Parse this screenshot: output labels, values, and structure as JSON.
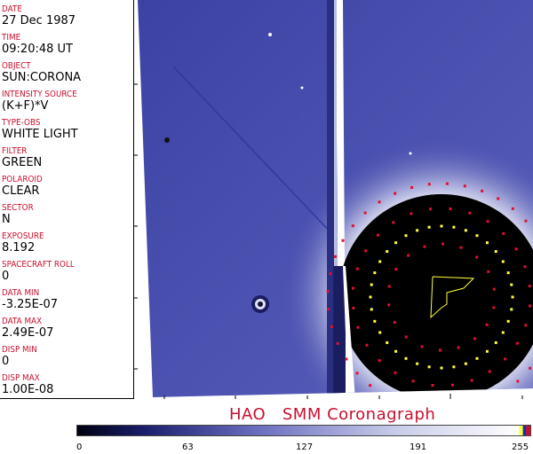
{
  "header_fields": [
    {
      "label": "DATE",
      "value": "27 Dec 1987"
    },
    {
      "label": "TIME",
      "value": "09:20:48 UT"
    },
    {
      "label": "OBJECT",
      "value": "SUN:CORONA"
    },
    {
      "label": "INTENSITY SOURCE",
      "value": "(K+F)*V"
    },
    {
      "label": "TYPE-OBS",
      "value": "WHITE LIGHT"
    },
    {
      "label": "FILTER",
      "value": "GREEN"
    },
    {
      "label": "POLAROID",
      "value": "CLEAR"
    },
    {
      "label": "SECTOR",
      "value": "N"
    },
    {
      "label": "EXPOSURE",
      "value": "8.192"
    },
    {
      "label": "SPACECRAFT ROLL",
      "value": "0"
    },
    {
      "label": "DATA MIN",
      "value": "-3.25E-07"
    },
    {
      "label": "DATA MAX",
      "value": "2.49E-07"
    },
    {
      "label": "DISP MIN",
      "value": "0"
    },
    {
      "label": "DISP MAX",
      "value": "1.00E-08"
    }
  ],
  "title": "HAO   SMM Coronagraph",
  "colorbar": {
    "ticks": [
      "0",
      "63",
      "127",
      "191",
      "255"
    ],
    "colors": [
      "#000010",
      "#1a1f6e",
      "#6a6fc0",
      "#c8cbe8",
      "#ffffff"
    ],
    "top_colors": [
      "#ffff33",
      "#1030c0",
      "#c8102e"
    ]
  },
  "colors": {
    "label": "#c8102e",
    "background": "#4a50b0",
    "occulter": "#000000",
    "marker_red": "#e01030",
    "marker_yellow": "#ffff40"
  }
}
